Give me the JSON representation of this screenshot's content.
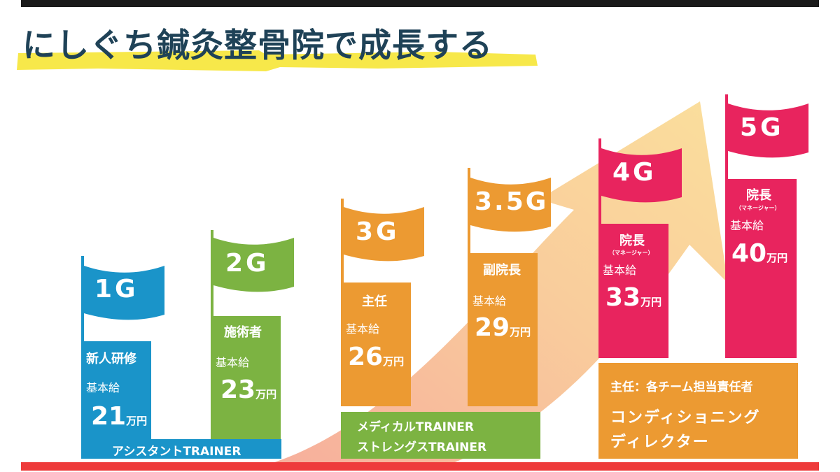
{
  "title": "にしぐち鍼灸整骨院で成長する",
  "colors": {
    "blue": "#1a94c9",
    "green": "#7cb342",
    "orange": "#ec9a32",
    "pink": "#e8245e",
    "dark": "#1f4257",
    "yellow": "#f7e84a",
    "red": "#ee3b3b"
  },
  "grades": [
    {
      "flag": "1G",
      "role": "新人研修",
      "base_label": "基本給",
      "amount": "21",
      "unit": "万円"
    },
    {
      "flag": "2G",
      "role": "施術者",
      "base_label": "基本給",
      "amount": "23",
      "unit": "万円"
    },
    {
      "flag": "3G",
      "role": "主任",
      "base_label": "基本給",
      "amount": "26",
      "unit": "万円"
    },
    {
      "flag": "3.5G",
      "role": "副院長",
      "base_label": "基本給",
      "amount": "29",
      "unit": "万円"
    },
    {
      "flag": "4G",
      "role": "院長",
      "role_sub": "（マネージャー）",
      "base_label": "基本給",
      "amount": "33",
      "unit": "万円"
    },
    {
      "flag": "5G",
      "role": "院長",
      "role_sub": "（マネージャー）",
      "base_label": "基本給",
      "amount": "40",
      "unit": "万円"
    }
  ],
  "tracks": {
    "assistant": "アシスタントTRAINER",
    "medical": "メディカルTRAINER",
    "strength": "ストレングスTRAINER",
    "lead_title": "主任：各チーム担当責任者",
    "lead_line1": "コンディショニング",
    "lead_line2": "ディレクター"
  }
}
